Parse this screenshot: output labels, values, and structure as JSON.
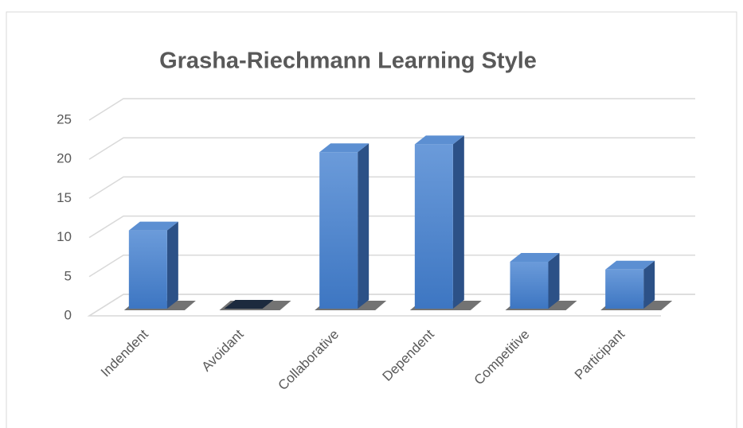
{
  "chart_data": {
    "type": "bar3d",
    "title": "Grasha-Riechmann Learning Style",
    "categories": [
      "Indendent",
      "Avoidant",
      "Collaborative",
      "Dependent",
      "Competitive",
      "Participant"
    ],
    "values": [
      10,
      0,
      20,
      21,
      6,
      5
    ],
    "color": "#4a7fc9",
    "ylim": [
      0,
      25
    ],
    "yticks": [
      0,
      5,
      10,
      15,
      20,
      25
    ],
    "grid": true
  }
}
